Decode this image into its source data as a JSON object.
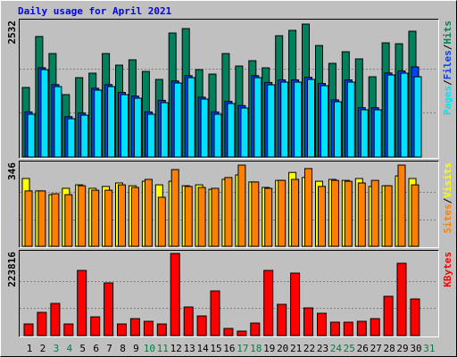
{
  "title": "Daily usage for April 2021",
  "legend_separator": "/",
  "weekend_color": "#008040",
  "weekend_indices": [
    2,
    3,
    9,
    10,
    16,
    17,
    23,
    24,
    30
  ],
  "chart_data": [
    {
      "type": "bar",
      "categories": [
        "1",
        "2",
        "3",
        "4",
        "5",
        "6",
        "7",
        "8",
        "9",
        "10",
        "11",
        "12",
        "13",
        "14",
        "15",
        "16",
        "17",
        "18",
        "19",
        "20",
        "21",
        "22",
        "23",
        "24",
        "25",
        "26",
        "27",
        "28",
        "29",
        "30",
        "31"
      ],
      "ylim": [
        0,
        2532
      ],
      "yticks": [
        2532
      ],
      "series": [
        {
          "name": "Hits",
          "color": "#00805c",
          "values": [
            1326,
            2295,
            1971,
            1190,
            1512,
            1597,
            1971,
            1750,
            1852,
            1631,
            1478,
            2362,
            2447,
            1665,
            1580,
            1971,
            1733,
            1835,
            1699,
            2311,
            2413,
            2532,
            2124,
            1784,
            2005,
            1869,
            1529,
            2175,
            2158,
            2396,
            null
          ]
        },
        {
          "name": "Files",
          "color": "#0040ff",
          "values": [
            860,
            1700,
            1380,
            770,
            840,
            1310,
            1380,
            1230,
            1160,
            860,
            1080,
            1450,
            1550,
            1140,
            860,
            1060,
            980,
            1550,
            1420,
            1470,
            1470,
            1520,
            1400,
            1090,
            1470,
            940,
            940,
            1600,
            1640,
            1716,
            null
          ]
        },
        {
          "name": "Pages",
          "color": "#00e0ff",
          "values": [
            816,
            1665,
            1343,
            731,
            799,
            1275,
            1343,
            1190,
            1122,
            816,
            1037,
            1411,
            1512,
            1105,
            816,
            1020,
            935,
            1512,
            1377,
            1428,
            1428,
            1478,
            1360,
            1054,
            1428,
            901,
            901,
            1564,
            1597,
            1529,
            null
          ]
        }
      ]
    },
    {
      "type": "bar",
      "ylim": [
        0,
        346
      ],
      "yticks": [
        346
      ],
      "series": [
        {
          "name": "Visits",
          "color": "#ffff00",
          "values": [
            289,
            236,
            220,
            247,
            262,
            247,
            255,
            270,
            258,
            277,
            262,
            277,
            258,
            262,
            243,
            285,
            304,
            274,
            251,
            281,
            315,
            293,
            277,
            285,
            281,
            289,
            255,
            258,
            300,
            289,
            null
          ]
        },
        {
          "name": "Sites",
          "color": "#ff8000",
          "values": [
            236,
            236,
            224,
            220,
            258,
            239,
            239,
            262,
            251,
            285,
            209,
            327,
            255,
            251,
            247,
            293,
            346,
            274,
            247,
            281,
            285,
            331,
            255,
            281,
            277,
            270,
            281,
            258,
            346,
            262,
            null
          ]
        }
      ]
    },
    {
      "type": "bar",
      "ylim": [
        0,
        223816
      ],
      "yticks": [
        223816
      ],
      "series": [
        {
          "name": "KBytes",
          "color": "#ff0000",
          "values": [
            31600,
            63300,
            87600,
            31600,
            177600,
            51100,
            143500,
            31600,
            46200,
            38900,
            31600,
            223816,
            77900,
            53500,
            121700,
            19500,
            12200,
            34100,
            177600,
            85200,
            170300,
            75400,
            60800,
            36500,
            36500,
            38900,
            46200,
            107100,
            197100,
            99800,
            null
          ]
        }
      ]
    }
  ]
}
